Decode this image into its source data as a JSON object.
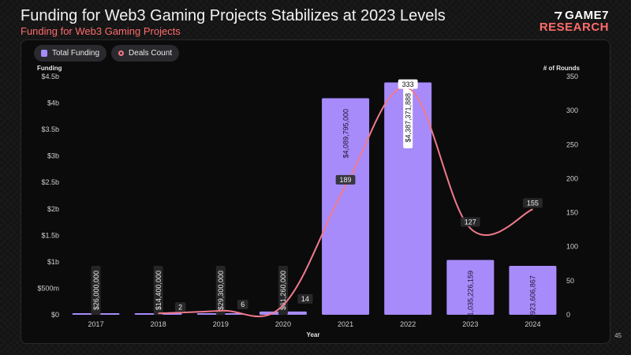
{
  "header": {
    "title": "Funding for Web3 Gaming Projects Stabilizes at 2023 Levels",
    "subtitle": "Funding for Web3 Gaming Projects"
  },
  "logo": {
    "top": "GAME7",
    "bottom": "RESEARCH"
  },
  "page_number": "45",
  "colors": {
    "bar": "#a78bfa",
    "line": "#f07a8a",
    "subtitle": "#ff6b6b"
  },
  "chart_data": {
    "type": "bar",
    "categories": [
      "2017",
      "2018",
      "2019",
      "2020",
      "2021",
      "2022",
      "2023",
      "2024"
    ],
    "series": [
      {
        "name": "Total Funding",
        "type": "bar",
        "axis": "left",
        "values": [
          26000000,
          14400000,
          29300000,
          61260000,
          4089795000,
          4387371888,
          1035226159,
          923606867
        ],
        "labels": [
          "$26,000,000",
          "$14,400,000",
          "$29,300,000",
          "$61,260,000",
          "$4,089,795,000",
          "$4,387,371,888",
          "$1,035,226,159",
          "$923,606,867"
        ]
      },
      {
        "name": "Deals Count",
        "type": "line",
        "axis": "right",
        "values": [
          null,
          2,
          6,
          14,
          189,
          333,
          127,
          155
        ],
        "labels": [
          "",
          "2",
          "6",
          "14",
          "189",
          "333",
          "127",
          "155"
        ]
      }
    ],
    "xlabel": "Year",
    "ylabel_left": "Funding",
    "ylabel_right": "# of Rounds",
    "yticks_left": [
      "$0",
      "$500m",
      "$1b",
      "$1.5b",
      "$2b",
      "$2.5b",
      "$3b",
      "$3.5b",
      "$4b",
      "$4.5b"
    ],
    "yticks_right": [
      "0",
      "50",
      "100",
      "150",
      "200",
      "250",
      "300",
      "350"
    ],
    "ylim_left": [
      0,
      4500000000
    ],
    "ylim_right": [
      0,
      350
    ],
    "grid": false,
    "legend": "top-left"
  }
}
